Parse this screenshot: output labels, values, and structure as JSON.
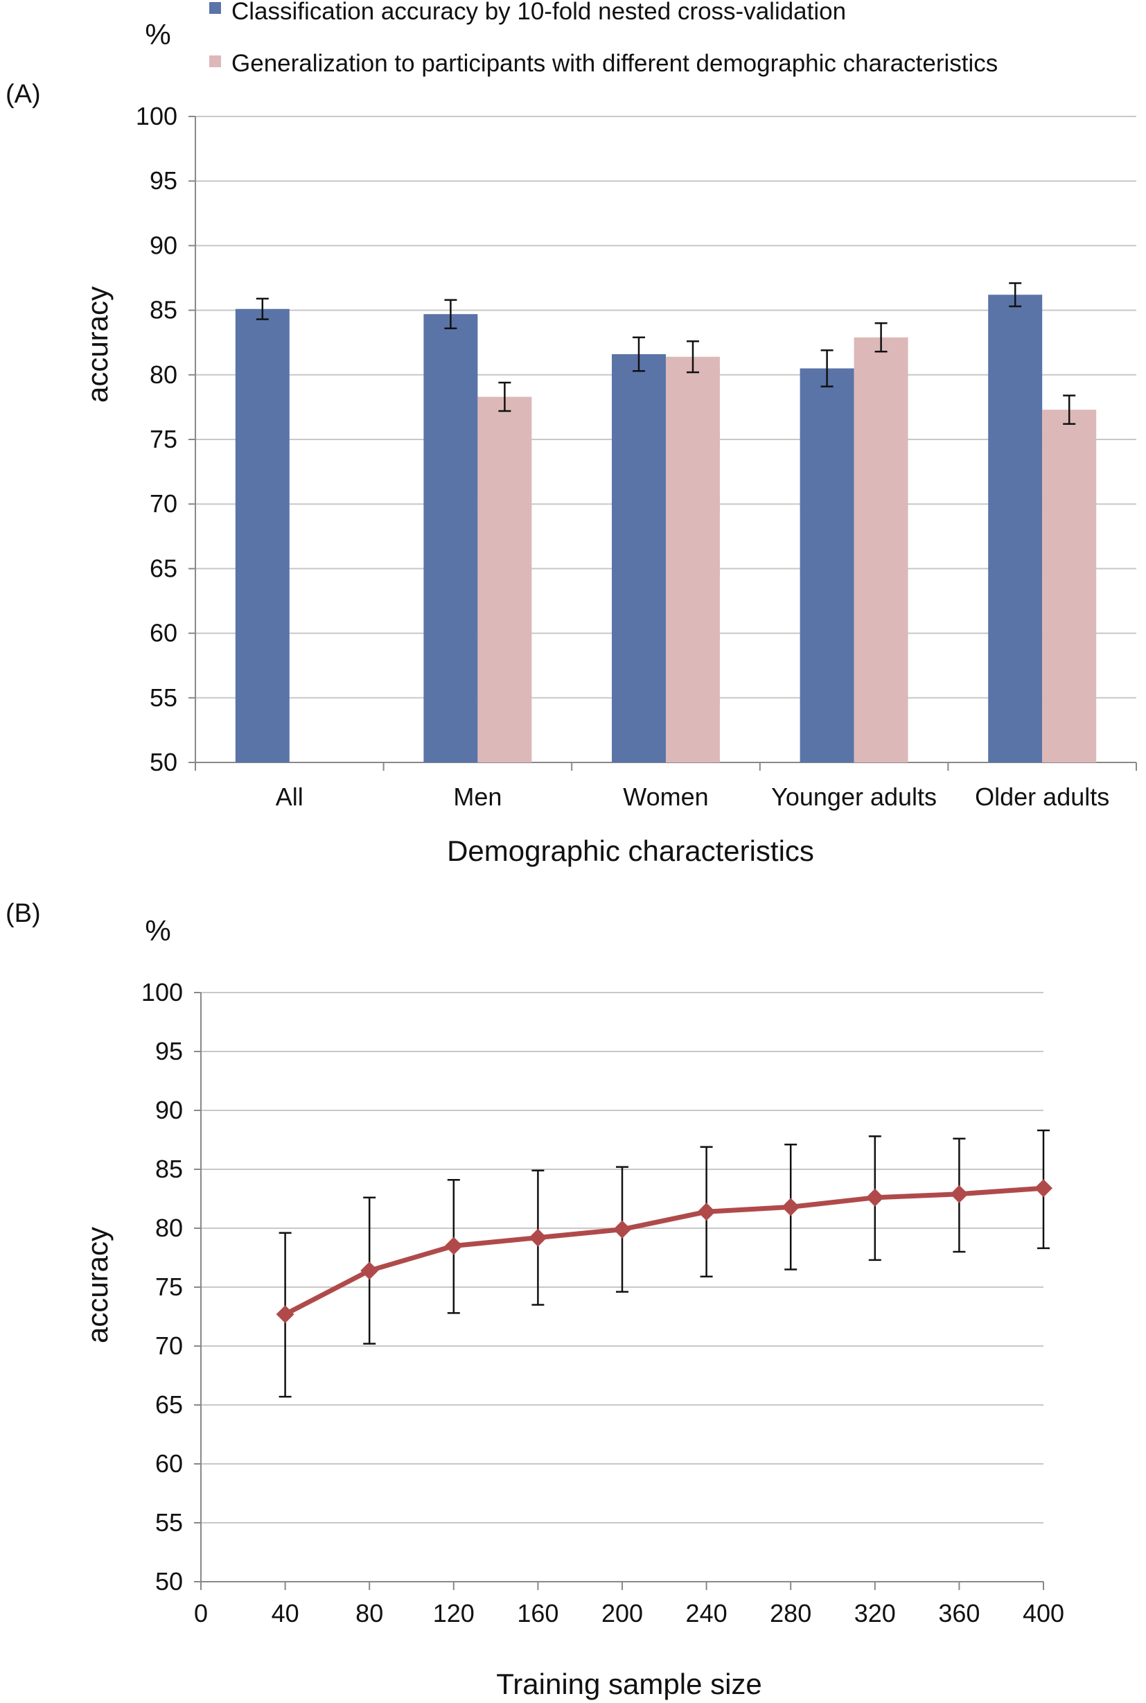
{
  "panel_a": {
    "label": "(A)",
    "unit": "%"
  },
  "panel_b": {
    "label": "(B)",
    "unit": "%"
  },
  "chart_data": [
    {
      "type": "bar",
      "panel": "(A)",
      "title": "",
      "xlabel": "Demographic  characteristics",
      "ylabel": "accuracy",
      "ylim": [
        50,
        100
      ],
      "yticks": [
        50,
        55,
        60,
        65,
        70,
        75,
        80,
        85,
        90,
        95,
        100
      ],
      "grid": true,
      "legend_position": "top",
      "categories": [
        "All",
        "Men",
        "Women",
        "Younger adults",
        "Older adults"
      ],
      "series": [
        {
          "name": "Classification accuracy by 10-fold nested cross-validation",
          "color": "#5A74A8",
          "values": [
            85.1,
            84.7,
            81.6,
            80.5,
            86.2
          ],
          "error": [
            0.8,
            1.1,
            1.3,
            1.4,
            0.9
          ]
        },
        {
          "name": "Generalization to participants with different demographic characteristics",
          "color": "#DDB8B8",
          "values": [
            null,
            78.3,
            81.4,
            82.9,
            77.3
          ],
          "error": [
            null,
            1.1,
            1.2,
            1.1,
            1.1
          ]
        }
      ]
    },
    {
      "type": "line",
      "panel": "(B)",
      "title": "",
      "xlabel": "Training sample size",
      "ylabel": "accuracy",
      "xlim": [
        0,
        400
      ],
      "xticks": [
        0,
        40,
        80,
        120,
        160,
        200,
        240,
        280,
        320,
        360,
        400
      ],
      "ylim": [
        50,
        100
      ],
      "yticks": [
        50,
        55,
        60,
        65,
        70,
        75,
        80,
        85,
        90,
        95,
        100
      ],
      "grid": true,
      "series": [
        {
          "color": "#B04A4A",
          "x": [
            40,
            80,
            120,
            160,
            200,
            240,
            280,
            320,
            360,
            400
          ],
          "y": [
            72.7,
            76.4,
            78.5,
            79.2,
            79.9,
            81.4,
            81.8,
            82.6,
            82.9,
            83.4
          ],
          "error_low": [
            65.7,
            70.2,
            72.8,
            73.5,
            74.6,
            75.9,
            76.5,
            77.3,
            78.0,
            78.3
          ],
          "error_high": [
            79.6,
            82.6,
            84.1,
            84.9,
            85.2,
            86.9,
            87.1,
            87.8,
            87.6,
            88.3
          ]
        }
      ]
    }
  ]
}
